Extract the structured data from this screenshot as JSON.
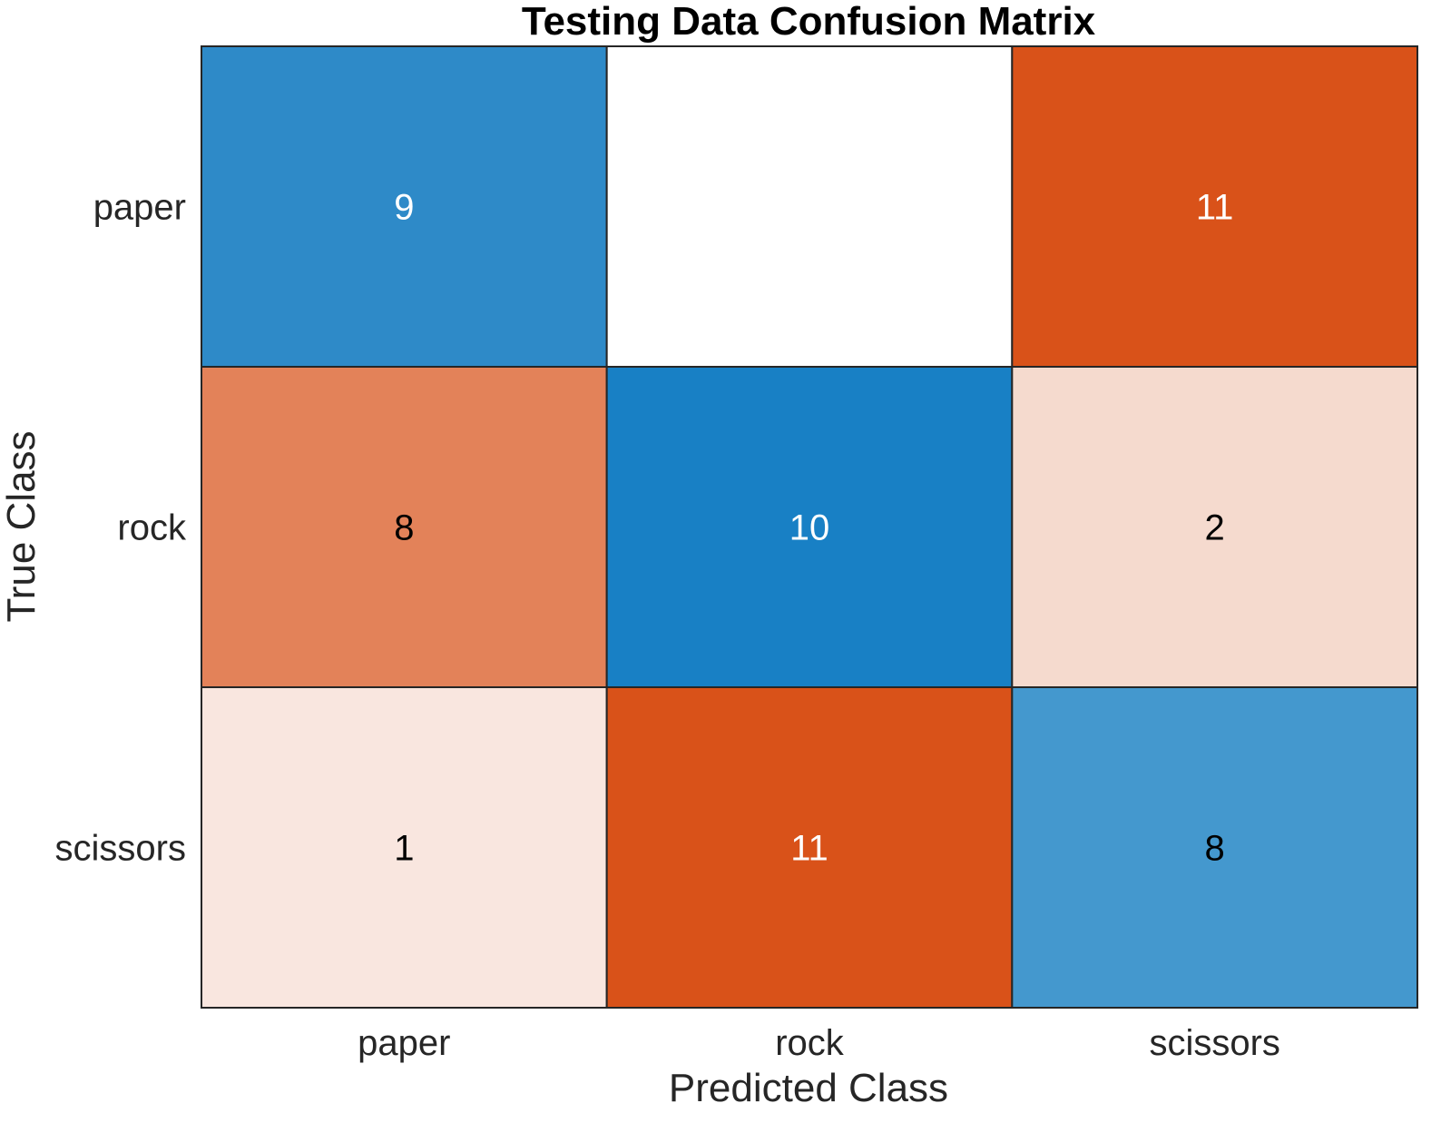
{
  "chart_data": {
    "type": "heatmap",
    "title": "Testing Data Confusion Matrix",
    "xlabel": "Predicted Class",
    "ylabel": "True Class",
    "x_categories": [
      "paper",
      "rock",
      "scissors"
    ],
    "y_categories": [
      "paper",
      "rock",
      "scissors"
    ],
    "values": [
      [
        9,
        0,
        11
      ],
      [
        8,
        10,
        2
      ],
      [
        1,
        11,
        8
      ]
    ],
    "display_labels": [
      [
        "9",
        "",
        "11"
      ],
      [
        "8",
        "10",
        "2"
      ],
      [
        "1",
        "11",
        "8"
      ]
    ],
    "cell_colors": [
      [
        "#2e8ac8",
        "#ffffff",
        "#d95219"
      ],
      [
        "#e38259",
        "#1880c5",
        "#f5dace"
      ],
      [
        "#f9e6df",
        "#d95219",
        "#4498ce"
      ]
    ],
    "cell_text_colors": [
      [
        "#ffffff",
        "#ffffff",
        "#ffffff"
      ],
      [
        "#000000",
        "#ffffff",
        "#000000"
      ],
      [
        "#000000",
        "#ffffff",
        "#000000"
      ]
    ],
    "colors": {
      "correct": "#0072bd",
      "incorrect": "#d95319"
    },
    "grid": true
  }
}
